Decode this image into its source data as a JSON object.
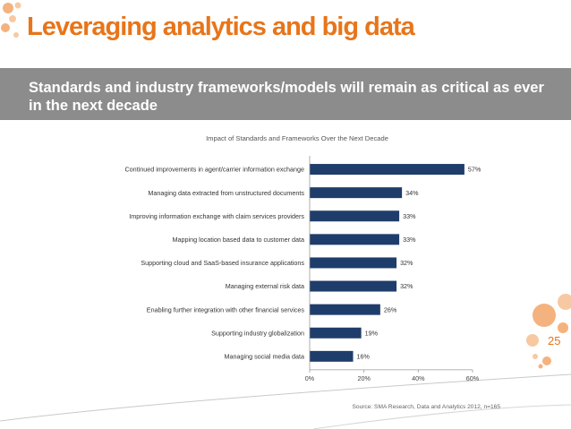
{
  "slide": {
    "title": "Leveraging analytics and big data",
    "subtitle": "Standards and industry frameworks/models will remain as critical as ever in the next decade",
    "page_number": "25",
    "accent_color": "#e8751a",
    "banner_color": "#8c8c8c"
  },
  "chart_data": {
    "type": "bar",
    "orientation": "horizontal",
    "title": "Impact of Standards and Frameworks Over the Next Decade",
    "source": "Source: SMA Research, Data and Analytics 2012, n=165",
    "categories": [
      "Continued improvements in agent/carrier information exchange",
      "Managing data extracted from unstructured documents",
      "Improving information exchange with claim services providers",
      "Mapping location based data to customer data",
      "Supporting cloud and SaaS-based insurance applications",
      "Managing external risk data",
      "Enabling further integration with other financial services",
      "Supporting industry globalization",
      "Managing social media data"
    ],
    "values": [
      57,
      34,
      33,
      33,
      32,
      32,
      26,
      19,
      16
    ],
    "value_labels": [
      "57%",
      "34%",
      "33%",
      "33%",
      "32%",
      "32%",
      "26%",
      "19%",
      "16%"
    ],
    "xlim": [
      0,
      60
    ],
    "xticks": [
      0,
      20,
      40,
      60
    ],
    "xtick_labels": [
      "0%",
      "20%",
      "40%",
      "60%"
    ],
    "bar_color": "#1f3d6b",
    "grid": false,
    "legend": "none"
  }
}
